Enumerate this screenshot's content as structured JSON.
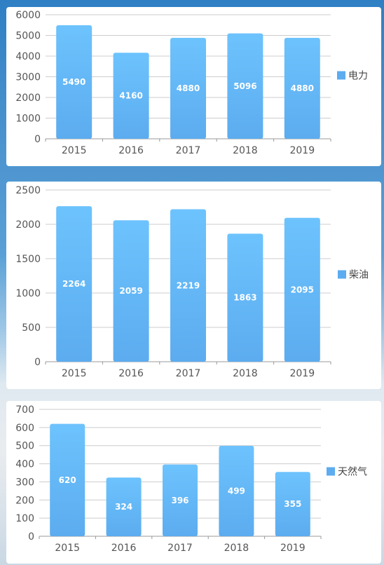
{
  "colors": {
    "bar_top": "#6dc3fd",
    "bar_bottom": "#5cacef",
    "grid": "#cccccc",
    "axis": "#999999"
  },
  "chart_data": [
    {
      "type": "bar",
      "categories": [
        "2015",
        "2016",
        "2017",
        "2018",
        "2019"
      ],
      "series": [
        {
          "name": "电力",
          "values": [
            5490,
            4160,
            4880,
            5096,
            4880
          ]
        }
      ],
      "yticks": [
        0,
        1000,
        2000,
        3000,
        4000,
        5000,
        6000
      ],
      "ylim": [
        0,
        6000
      ],
      "grid": true,
      "legend_position": "right"
    },
    {
      "type": "bar",
      "categories": [
        "2015",
        "2016",
        "2017",
        "2018",
        "2019"
      ],
      "series": [
        {
          "name": "柴油",
          "values": [
            2264,
            2059,
            2219,
            1863,
            2095
          ]
        }
      ],
      "yticks": [
        0,
        500,
        1000,
        1500,
        2000,
        2500
      ],
      "ylim": [
        0,
        2500
      ],
      "grid": true,
      "legend_position": "right"
    },
    {
      "type": "bar",
      "categories": [
        "2015",
        "2016",
        "2017",
        "2018",
        "2019"
      ],
      "series": [
        {
          "name": "天然气",
          "values": [
            620,
            324,
            396,
            499,
            355
          ]
        }
      ],
      "yticks": [
        0,
        100,
        200,
        300,
        400,
        500,
        600,
        700
      ],
      "ylim": [
        0,
        700
      ],
      "grid": true,
      "legend_position": "right"
    }
  ]
}
